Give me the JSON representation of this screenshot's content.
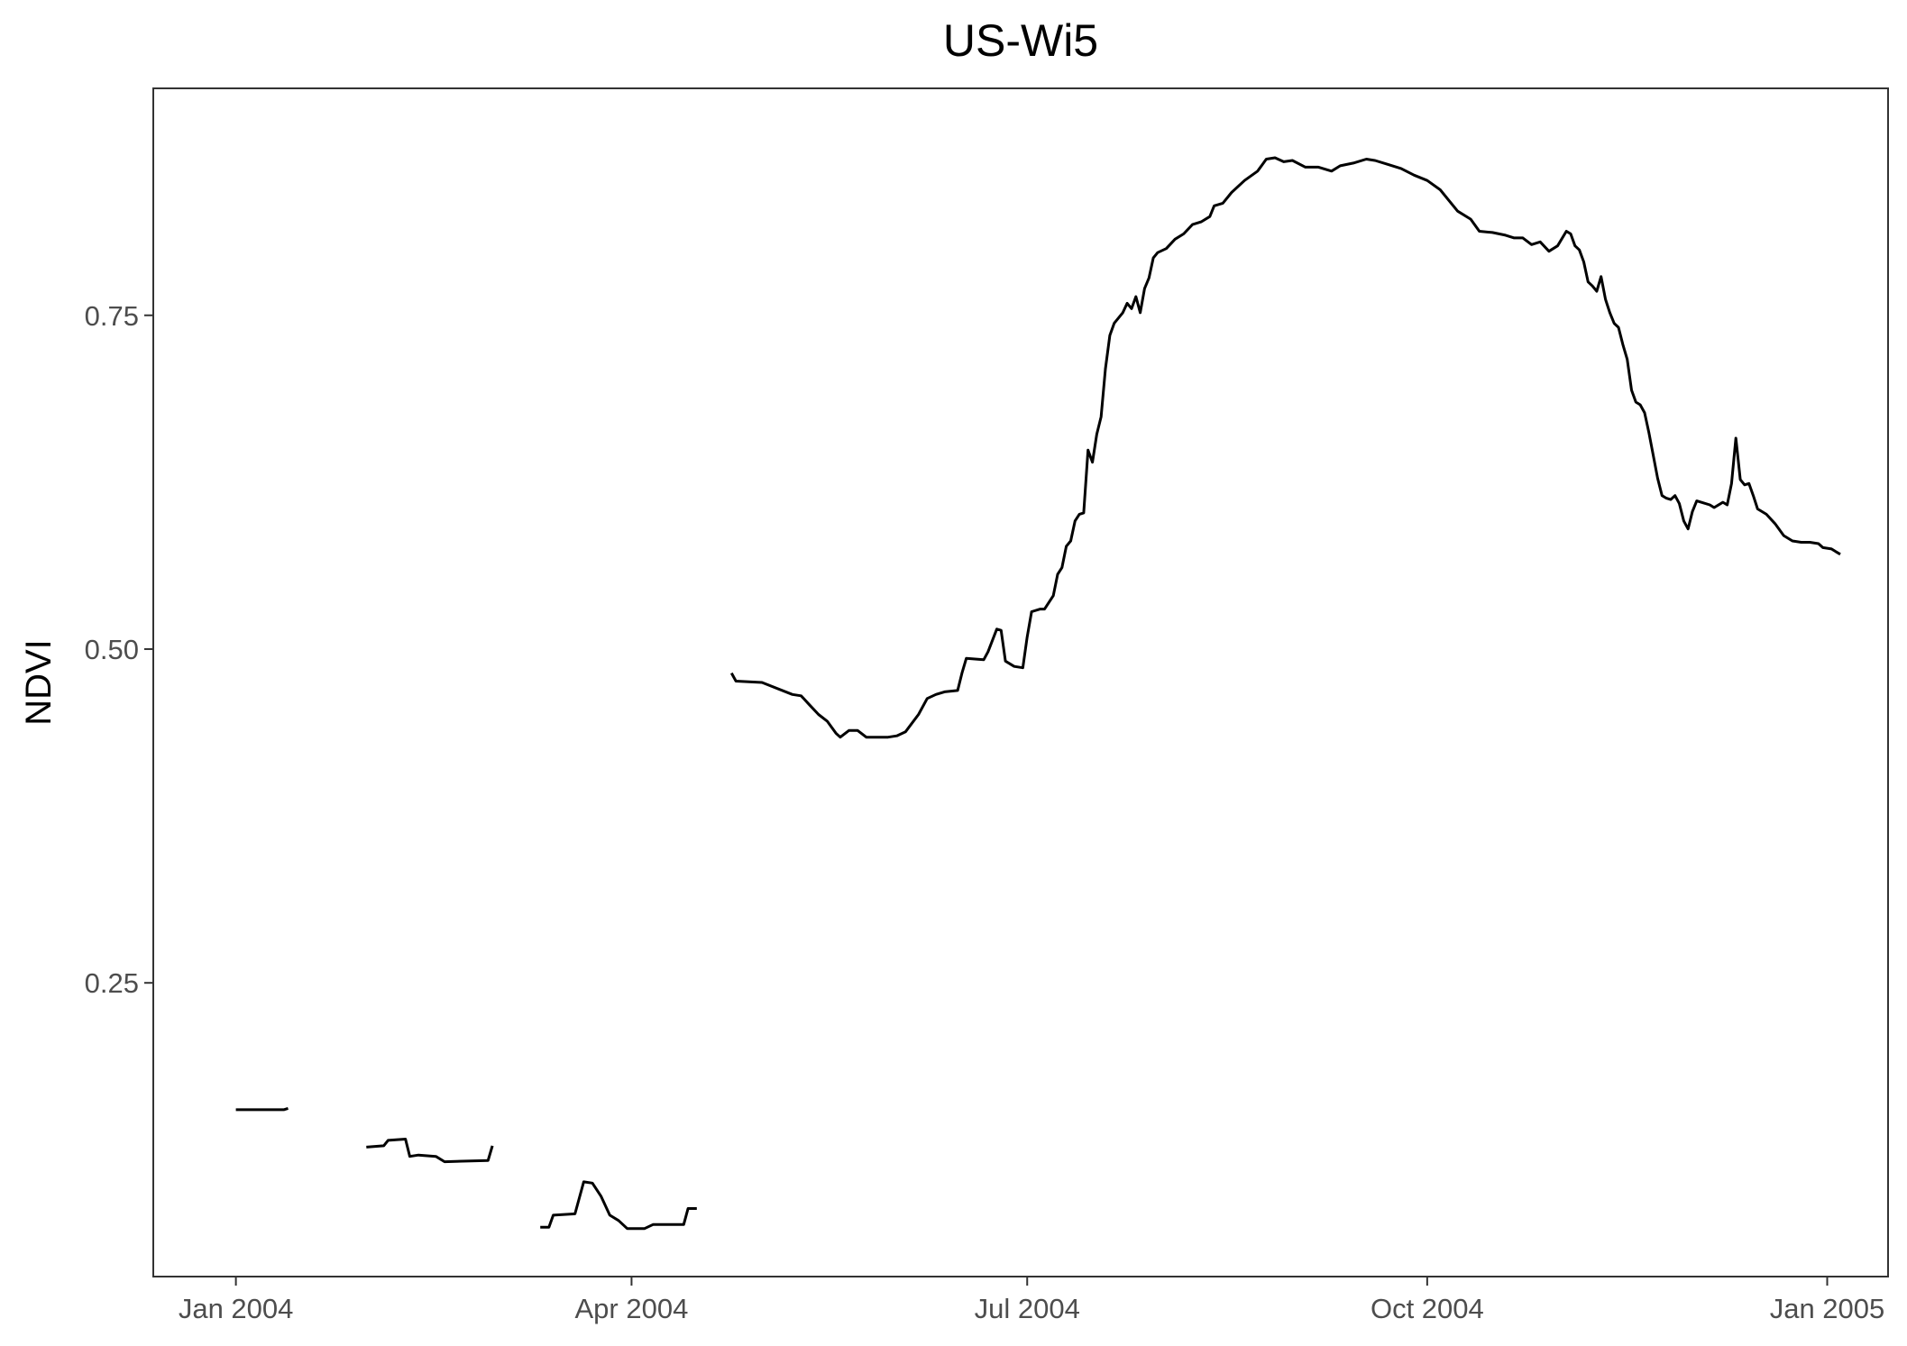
{
  "chart_data": {
    "type": "line",
    "title": "US-Wi5",
    "xlabel": "",
    "ylabel": "NDVI",
    "x_ticks": [
      "Jan 2004",
      "Apr 2004",
      "Jul 2004",
      "Oct 2004",
      "Jan 2005"
    ],
    "y_ticks": [
      "0.25",
      "0.50",
      "0.75"
    ],
    "xlim": [
      "2003-12-13",
      "2005-01-15"
    ],
    "ylim": [
      0.03,
      0.92
    ],
    "grid": false,
    "legend": "none",
    "line_color": "#000000",
    "series": [
      {
        "segments": [
          [
            [
              "2004-01-01",
              0.155
            ],
            [
              "2004-01-12",
              0.155
            ],
            [
              "2004-01-13",
              0.156
            ]
          ],
          [
            [
              "2004-01-31",
              0.127
            ],
            [
              "2004-02-04",
              0.128
            ],
            [
              "2004-02-05",
              0.132
            ],
            [
              "2004-02-09",
              0.133
            ],
            [
              "2004-02-10",
              0.12
            ],
            [
              "2004-02-12",
              0.121
            ],
            [
              "2004-02-16",
              0.12
            ],
            [
              "2004-02-18",
              0.116
            ],
            [
              "2004-02-28",
              0.117
            ],
            [
              "2004-02-29",
              0.128
            ]
          ],
          [
            [
              "2004-03-11",
              0.067
            ],
            [
              "2004-03-13",
              0.067
            ],
            [
              "2004-03-14",
              0.076
            ],
            [
              "2004-03-19",
              0.077
            ],
            [
              "2004-03-21",
              0.101
            ],
            [
              "2004-03-23",
              0.1
            ],
            [
              "2004-03-25",
              0.09
            ],
            [
              "2004-03-27",
              0.076
            ],
            [
              "2004-03-29",
              0.072
            ],
            [
              "2004-03-31",
              0.066
            ],
            [
              "2004-04-04",
              0.066
            ],
            [
              "2004-04-06",
              0.069
            ],
            [
              "2004-04-13",
              0.069
            ],
            [
              "2004-04-14",
              0.081
            ],
            [
              "2004-04-16",
              0.081
            ]
          ],
          [
            [
              "2004-04-24",
              0.482
            ],
            [
              "2004-04-25",
              0.476
            ],
            [
              "2004-05-01",
              0.475
            ],
            [
              "2004-05-08",
              0.466
            ],
            [
              "2004-05-10",
              0.465
            ],
            [
              "2004-05-12",
              0.458
            ],
            [
              "2004-05-14",
              0.451
            ],
            [
              "2004-05-16",
              0.446
            ],
            [
              "2004-05-18",
              0.437
            ],
            [
              "2004-05-19",
              0.434
            ],
            [
              "2004-05-21",
              0.439
            ],
            [
              "2004-05-23",
              0.439
            ],
            [
              "2004-05-25",
              0.434
            ],
            [
              "2004-05-30",
              0.434
            ],
            [
              "2004-06-01",
              0.435
            ],
            [
              "2004-06-03",
              0.438
            ],
            [
              "2004-06-06",
              0.451
            ],
            [
              "2004-06-08",
              0.463
            ],
            [
              "2004-06-10",
              0.466
            ],
            [
              "2004-06-12",
              0.468
            ],
            [
              "2004-06-15",
              0.469
            ],
            [
              "2004-06-16",
              0.482
            ],
            [
              "2004-06-17",
              0.493
            ],
            [
              "2004-06-21",
              0.492
            ],
            [
              "2004-06-22",
              0.498
            ],
            [
              "2004-06-24",
              0.515
            ],
            [
              "2004-06-25",
              0.514
            ],
            [
              "2004-06-26",
              0.491
            ],
            [
              "2004-06-28",
              0.487
            ],
            [
              "2004-06-30",
              0.486
            ],
            [
              "2004-07-01",
              0.509
            ],
            [
              "2004-07-02",
              0.528
            ],
            [
              "2004-07-04",
              0.53
            ],
            [
              "2004-07-05",
              0.53
            ],
            [
              "2004-07-07",
              0.54
            ],
            [
              "2004-07-08",
              0.556
            ],
            [
              "2004-07-09",
              0.561
            ],
            [
              "2004-07-10",
              0.577
            ],
            [
              "2004-07-11",
              0.581
            ],
            [
              "2004-07-12",
              0.596
            ],
            [
              "2004-07-13",
              0.601
            ],
            [
              "2004-07-14",
              0.602
            ],
            [
              "2004-07-15",
              0.649
            ],
            [
              "2004-07-16",
              0.64
            ],
            [
              "2004-07-17",
              0.661
            ],
            [
              "2004-07-18",
              0.674
            ],
            [
              "2004-07-19",
              0.71
            ],
            [
              "2004-07-20",
              0.735
            ],
            [
              "2004-07-21",
              0.744
            ],
            [
              "2004-07-22",
              0.748
            ],
            [
              "2004-07-23",
              0.752
            ],
            [
              "2004-07-24",
              0.759
            ],
            [
              "2004-07-25",
              0.755
            ],
            [
              "2004-07-26",
              0.764
            ],
            [
              "2004-07-27",
              0.752
            ],
            [
              "2004-07-28",
              0.77
            ],
            [
              "2004-07-29",
              0.778
            ],
            [
              "2004-07-30",
              0.793
            ],
            [
              "2004-07-31",
              0.797
            ],
            [
              "2004-08-02",
              0.8
            ],
            [
              "2004-08-04",
              0.807
            ],
            [
              "2004-08-06",
              0.811
            ],
            [
              "2004-08-08",
              0.818
            ],
            [
              "2004-08-10",
              0.82
            ],
            [
              "2004-08-12",
              0.824
            ],
            [
              "2004-08-13",
              0.832
            ],
            [
              "2004-08-15",
              0.834
            ],
            [
              "2004-08-17",
              0.842
            ],
            [
              "2004-08-20",
              0.851
            ],
            [
              "2004-08-23",
              0.858
            ],
            [
              "2004-08-25",
              0.867
            ],
            [
              "2004-08-27",
              0.868
            ],
            [
              "2004-08-29",
              0.865
            ],
            [
              "2004-08-31",
              0.866
            ],
            [
              "2004-09-03",
              0.861
            ],
            [
              "2004-09-06",
              0.861
            ],
            [
              "2004-09-09",
              0.858
            ],
            [
              "2004-09-11",
              0.862
            ],
            [
              "2004-09-14",
              0.864
            ],
            [
              "2004-09-17",
              0.867
            ],
            [
              "2004-09-19",
              0.866
            ],
            [
              "2004-09-22",
              0.863
            ],
            [
              "2004-09-25",
              0.86
            ],
            [
              "2004-09-28",
              0.855
            ],
            [
              "2004-10-01",
              0.851
            ],
            [
              "2004-10-04",
              0.844
            ],
            [
              "2004-10-06",
              0.836
            ],
            [
              "2004-10-08",
              0.828
            ],
            [
              "2004-10-11",
              0.822
            ],
            [
              "2004-10-13",
              0.813
            ],
            [
              "2004-10-16",
              0.812
            ],
            [
              "2004-10-19",
              0.81
            ],
            [
              "2004-10-21",
              0.808
            ],
            [
              "2004-10-23",
              0.808
            ],
            [
              "2004-10-25",
              0.803
            ],
            [
              "2004-10-27",
              0.805
            ],
            [
              "2004-10-29",
              0.798
            ],
            [
              "2004-10-31",
              0.802
            ],
            [
              "2004-11-02",
              0.813
            ],
            [
              "2004-11-03",
              0.811
            ],
            [
              "2004-11-04",
              0.802
            ],
            [
              "2004-11-05",
              0.799
            ],
            [
              "2004-11-06",
              0.79
            ],
            [
              "2004-11-07",
              0.775
            ],
            [
              "2004-11-08",
              0.772
            ],
            [
              "2004-11-09",
              0.768
            ],
            [
              "2004-11-10",
              0.779
            ],
            [
              "2004-11-11",
              0.762
            ],
            [
              "2004-11-12",
              0.752
            ],
            [
              "2004-11-13",
              0.744
            ],
            [
              "2004-11-14",
              0.741
            ],
            [
              "2004-11-15",
              0.728
            ],
            [
              "2004-11-16",
              0.717
            ],
            [
              "2004-11-17",
              0.694
            ],
            [
              "2004-11-18",
              0.685
            ],
            [
              "2004-11-19",
              0.683
            ],
            [
              "2004-11-20",
              0.677
            ],
            [
              "2004-11-21",
              0.662
            ],
            [
              "2004-11-22",
              0.645
            ],
            [
              "2004-11-23",
              0.628
            ],
            [
              "2004-11-24",
              0.615
            ],
            [
              "2004-11-25",
              0.613
            ],
            [
              "2004-11-26",
              0.612
            ],
            [
              "2004-11-27",
              0.615
            ],
            [
              "2004-11-28",
              0.609
            ],
            [
              "2004-11-29",
              0.596
            ],
            [
              "2004-11-30",
              0.59
            ],
            [
              "2004-12-01",
              0.603
            ],
            [
              "2004-12-02",
              0.611
            ],
            [
              "2004-12-03",
              0.61
            ],
            [
              "2004-12-05",
              0.608
            ],
            [
              "2004-12-06",
              0.606
            ],
            [
              "2004-12-08",
              0.61
            ],
            [
              "2004-12-09",
              0.608
            ],
            [
              "2004-12-10",
              0.624
            ],
            [
              "2004-12-11",
              0.658
            ],
            [
              "2004-12-12",
              0.627
            ],
            [
              "2004-12-13",
              0.623
            ],
            [
              "2004-12-14",
              0.624
            ],
            [
              "2004-12-15",
              0.615
            ],
            [
              "2004-12-16",
              0.605
            ],
            [
              "2004-12-18",
              0.601
            ],
            [
              "2004-12-20",
              0.594
            ],
            [
              "2004-12-22",
              0.585
            ],
            [
              "2004-12-24",
              0.581
            ],
            [
              "2004-12-26",
              0.58
            ],
            [
              "2004-12-28",
              0.58
            ],
            [
              "2004-12-30",
              0.579
            ],
            [
              "2004-12-31",
              0.576
            ],
            [
              "2005-01-02",
              0.575
            ],
            [
              "2005-01-03",
              0.573
            ],
            [
              "2005-01-04",
              0.571
            ]
          ]
        ]
      }
    ]
  }
}
